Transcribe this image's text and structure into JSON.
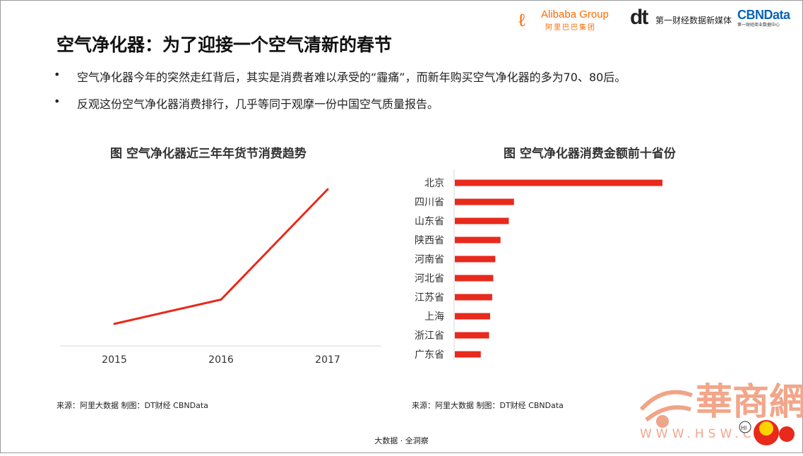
{
  "logos": {
    "alibaba_name": "Alibaba Group",
    "alibaba_sub": "阿里巴巴集团",
    "dt_mark": "dt",
    "dt_text": "第一财经数据新媒体",
    "cbn_name": "CBNData",
    "cbn_sub": "第一财经商业数据中心"
  },
  "page_title": "空气净化器：为了迎接一个空气清新的春节",
  "bullets": [
    "空气净化器今年的突然走红背后，其实是消费者难以承受的“霾痛”，而新年购买空气净化器的多为70、80后。",
    "反观这份空气净化器消费排行，几乎等同于观摩一份中国空气质量报告。"
  ],
  "bullet_symbol": "•",
  "source_left": "来源：阿里大数据   制图：DT财经    CBNData",
  "source_right": "来源：阿里大数据   制图：DT财经    CBNData",
  "footer": "大数据 · 全洞察",
  "watermark": {
    "brand": "華商網",
    "url": "WWW.HSW.CN",
    "badge": "HI"
  },
  "colors": {
    "accent": "#e8291c",
    "axis": "#d9d9d9",
    "text": "#333333"
  },
  "chart_data": [
    {
      "type": "line",
      "title": "图 空气净化器近三年年货节消费趋势",
      "x": [
        "2015",
        "2016",
        "2017"
      ],
      "series": [
        {
          "values": [
            10,
            21,
            71
          ]
        }
      ],
      "ylim": [
        0,
        80
      ],
      "xlabel": "",
      "ylabel": "",
      "y_axis_shown": false,
      "grid": false,
      "color": "#e8291c"
    },
    {
      "type": "bar",
      "orientation": "horizontal",
      "title": "图 空气净化器消费金额前十省份",
      "categories": [
        "北京",
        "四川省",
        "山东省",
        "陕西省",
        "河南省",
        "河北省",
        "江苏省",
        "上海",
        "浙江省",
        "广东省"
      ],
      "values": [
        100,
        28.5,
        26,
        22,
        19.5,
        18.5,
        18,
        17,
        16.5,
        12.5
      ],
      "xlim": [
        0,
        100
      ],
      "value_axis_shown": false,
      "grid": false,
      "color": "#e8291c"
    }
  ]
}
